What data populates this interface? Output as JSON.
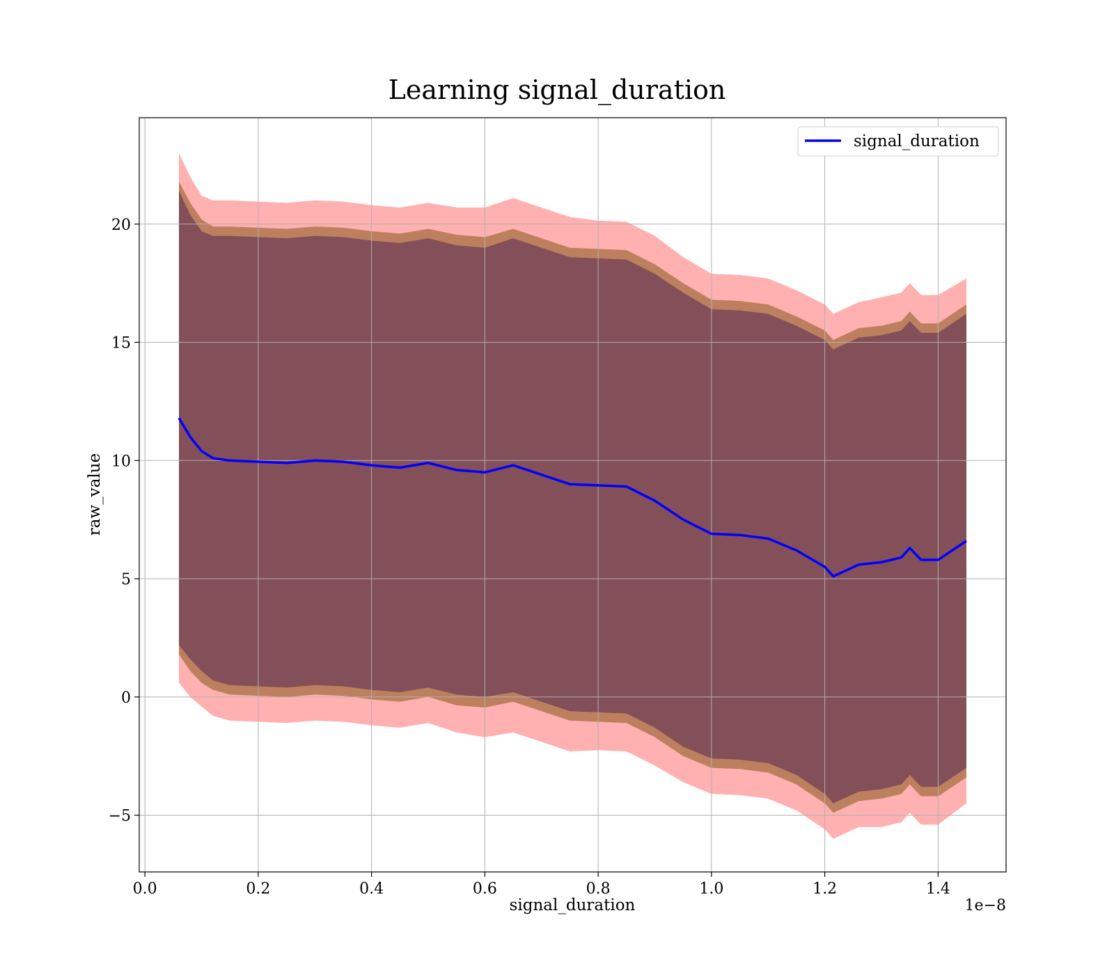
{
  "chart_data": {
    "type": "line",
    "title": "Learning signal_duration",
    "xlabel": "signal_duration",
    "ylabel": "raw_value",
    "x_offset_label": "1e−8",
    "xlim": [
      -0.01,
      1.52
    ],
    "ylim": [
      -7.4,
      24.5
    ],
    "x_ticks": [
      0.0,
      0.2,
      0.4,
      0.6,
      0.8,
      1.0,
      1.2,
      1.4
    ],
    "x_tick_labels": [
      "0.0",
      "0.2",
      "0.4",
      "0.6",
      "0.8",
      "1.0",
      "1.2",
      "1.4"
    ],
    "y_ticks": [
      -5,
      0,
      5,
      10,
      15,
      20
    ],
    "y_tick_labels": [
      "−5",
      "0",
      "5",
      "10",
      "15",
      "20"
    ],
    "grid": true,
    "legend_position": "top-right",
    "colors": {
      "line": "#0000ff",
      "band_outer": "#ff8080",
      "band_middle": "#b07850",
      "band_inner": "#6e3b58",
      "grid": "#b0b0b0"
    },
    "series": [
      {
        "name": "signal_duration",
        "x": [
          0.06,
          0.08,
          0.1,
          0.12,
          0.15,
          0.2,
          0.25,
          0.3,
          0.35,
          0.4,
          0.45,
          0.5,
          0.55,
          0.6,
          0.65,
          0.7,
          0.75,
          0.8,
          0.85,
          0.9,
          0.95,
          1.0,
          1.05,
          1.1,
          1.15,
          1.2,
          1.215,
          1.26,
          1.3,
          1.335,
          1.35,
          1.37,
          1.4,
          1.45
        ],
        "y": [
          11.8,
          11.0,
          10.4,
          10.1,
          10.0,
          9.95,
          9.9,
          10.0,
          9.95,
          9.8,
          9.7,
          9.9,
          9.6,
          9.5,
          9.8,
          9.4,
          9.0,
          8.95,
          8.9,
          8.3,
          7.5,
          6.9,
          6.85,
          6.7,
          6.2,
          5.5,
          5.1,
          5.6,
          5.7,
          5.9,
          6.3,
          5.8,
          5.8,
          6.6
        ]
      }
    ],
    "bands": [
      {
        "halfwidth": [
          11.2,
          11.0,
          10.8,
          10.9,
          11.0,
          11.0,
          11.0,
          11.0,
          11.0,
          11.0,
          11.0,
          11.0,
          11.1,
          11.2,
          11.3,
          11.3,
          11.3,
          11.2,
          11.2,
          11.2,
          11.1,
          11.0,
          11.0,
          11.0,
          11.0,
          11.1,
          11.1,
          11.1,
          11.2,
          11.2,
          11.2,
          11.2,
          11.2,
          11.1
        ]
      },
      {
        "halfwidth": [
          10.0,
          9.9,
          9.8,
          9.8,
          9.9,
          9.9,
          9.9,
          9.9,
          9.9,
          9.9,
          9.9,
          9.9,
          9.95,
          9.95,
          10.0,
          10.0,
          10.0,
          10.0,
          10.0,
          10.0,
          10.0,
          9.9,
          9.9,
          9.9,
          9.9,
          10.0,
          10.0,
          10.0,
          10.0,
          10.0,
          10.0,
          10.0,
          10.0,
          10.0
        ]
      },
      {
        "halfwidth": [
          9.6,
          9.4,
          9.3,
          9.4,
          9.5,
          9.5,
          9.5,
          9.5,
          9.5,
          9.5,
          9.5,
          9.5,
          9.5,
          9.5,
          9.6,
          9.6,
          9.6,
          9.6,
          9.6,
          9.6,
          9.6,
          9.5,
          9.5,
          9.5,
          9.5,
          9.6,
          9.6,
          9.6,
          9.6,
          9.6,
          9.6,
          9.6,
          9.6,
          9.6
        ]
      }
    ]
  }
}
